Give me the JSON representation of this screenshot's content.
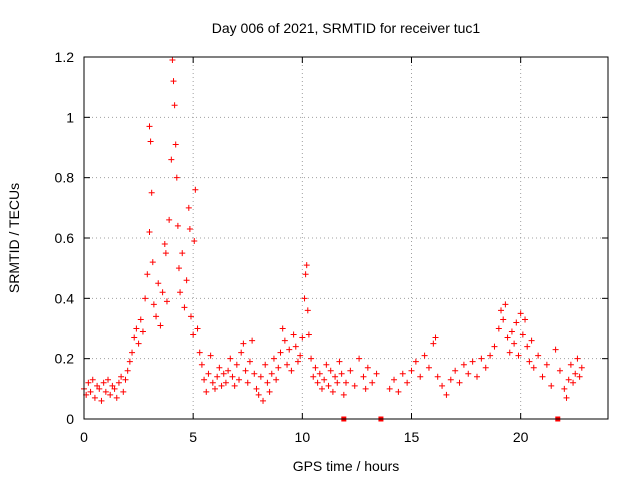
{
  "chart_data": {
    "type": "scatter",
    "title": "Day 006 of 2021, SRMTID for receiver tuc1",
    "xlabel": "GPS time / hours",
    "ylabel": "SRMTID / TECUs",
    "xlim": [
      0,
      24
    ],
    "ylim": [
      0,
      1.2
    ],
    "xticks": [
      0,
      5,
      10,
      15,
      20
    ],
    "xtick_labels": [
      "0",
      "5",
      "10",
      "15",
      "20"
    ],
    "yticks": [
      0,
      0.2,
      0.4,
      0.6,
      0.8,
      1.0,
      1.2
    ],
    "ytick_labels": [
      "0",
      "0.2",
      "0.4",
      "0.6",
      "0.8",
      "1",
      "1.2"
    ],
    "grid": true,
    "marker": "plus",
    "color": "#ff0000",
    "series": [
      {
        "name": "SRMTID",
        "points": [
          [
            0.0,
            0.1
          ],
          [
            0.1,
            0.08
          ],
          [
            0.2,
            0.12
          ],
          [
            0.3,
            0.09
          ],
          [
            0.4,
            0.13
          ],
          [
            0.5,
            0.07
          ],
          [
            0.6,
            0.11
          ],
          [
            0.7,
            0.1
          ],
          [
            0.8,
            0.06
          ],
          [
            0.9,
            0.12
          ],
          [
            1.0,
            0.09
          ],
          [
            1.1,
            0.13
          ],
          [
            1.2,
            0.08
          ],
          [
            1.3,
            0.11
          ],
          [
            1.4,
            0.1
          ],
          [
            1.5,
            0.07
          ],
          [
            1.6,
            0.12
          ],
          [
            1.7,
            0.14
          ],
          [
            1.8,
            0.09
          ],
          [
            1.9,
            0.13
          ],
          [
            2.0,
            0.16
          ],
          [
            2.1,
            0.19
          ],
          [
            2.2,
            0.22
          ],
          [
            2.3,
            0.27
          ],
          [
            2.4,
            0.3
          ],
          [
            2.5,
            0.25
          ],
          [
            2.6,
            0.33
          ],
          [
            2.7,
            0.29
          ],
          [
            2.8,
            0.4
          ],
          [
            2.9,
            0.48
          ],
          [
            3.0,
            0.62
          ],
          [
            3.0,
            0.97
          ],
          [
            3.05,
            0.92
          ],
          [
            3.1,
            0.75
          ],
          [
            3.15,
            0.52
          ],
          [
            3.2,
            0.38
          ],
          [
            3.3,
            0.34
          ],
          [
            3.4,
            0.45
          ],
          [
            3.5,
            0.31
          ],
          [
            3.6,
            0.42
          ],
          [
            3.7,
            0.58
          ],
          [
            3.75,
            0.55
          ],
          [
            3.8,
            0.39
          ],
          [
            3.9,
            0.66
          ],
          [
            4.0,
            0.86
          ],
          [
            4.05,
            1.19
          ],
          [
            4.1,
            1.12
          ],
          [
            4.15,
            1.04
          ],
          [
            4.2,
            0.91
          ],
          [
            4.25,
            0.8
          ],
          [
            4.3,
            0.64
          ],
          [
            4.35,
            0.5
          ],
          [
            4.4,
            0.42
          ],
          [
            4.5,
            0.55
          ],
          [
            4.6,
            0.37
          ],
          [
            4.7,
            0.46
          ],
          [
            4.8,
            0.7
          ],
          [
            4.85,
            0.63
          ],
          [
            4.9,
            0.34
          ],
          [
            5.0,
            0.28
          ],
          [
            5.05,
            0.59
          ],
          [
            5.1,
            0.76
          ],
          [
            5.2,
            0.3
          ],
          [
            5.3,
            0.22
          ],
          [
            5.4,
            0.18
          ],
          [
            5.5,
            0.13
          ],
          [
            5.6,
            0.09
          ],
          [
            5.7,
            0.15
          ],
          [
            5.8,
            0.21
          ],
          [
            5.9,
            0.12
          ],
          [
            6.0,
            0.1
          ],
          [
            6.1,
            0.14
          ],
          [
            6.2,
            0.17
          ],
          [
            6.3,
            0.11
          ],
          [
            6.4,
            0.15
          ],
          [
            6.5,
            0.12
          ],
          [
            6.6,
            0.16
          ],
          [
            6.7,
            0.2
          ],
          [
            6.8,
            0.14
          ],
          [
            6.9,
            0.11
          ],
          [
            7.0,
            0.18
          ],
          [
            7.1,
            0.13
          ],
          [
            7.2,
            0.22
          ],
          [
            7.3,
            0.25
          ],
          [
            7.4,
            0.16
          ],
          [
            7.5,
            0.12
          ],
          [
            7.6,
            0.19
          ],
          [
            7.7,
            0.26
          ],
          [
            7.8,
            0.15
          ],
          [
            7.9,
            0.1
          ],
          [
            8.0,
            0.08
          ],
          [
            8.1,
            0.14
          ],
          [
            8.2,
            0.06
          ],
          [
            8.3,
            0.18
          ],
          [
            8.4,
            0.12
          ],
          [
            8.5,
            0.09
          ],
          [
            8.6,
            0.15
          ],
          [
            8.7,
            0.2
          ],
          [
            8.8,
            0.13
          ],
          [
            8.9,
            0.17
          ],
          [
            9.0,
            0.22
          ],
          [
            9.1,
            0.3
          ],
          [
            9.2,
            0.26
          ],
          [
            9.3,
            0.18
          ],
          [
            9.4,
            0.23
          ],
          [
            9.5,
            0.16
          ],
          [
            9.6,
            0.28
          ],
          [
            9.7,
            0.24
          ],
          [
            9.8,
            0.19
          ],
          [
            9.9,
            0.21
          ],
          [
            10.0,
            0.27
          ],
          [
            10.1,
            0.4
          ],
          [
            10.15,
            0.48
          ],
          [
            10.2,
            0.51
          ],
          [
            10.25,
            0.36
          ],
          [
            10.3,
            0.28
          ],
          [
            10.4,
            0.2
          ],
          [
            10.5,
            0.14
          ],
          [
            10.6,
            0.17
          ],
          [
            10.7,
            0.12
          ],
          [
            10.8,
            0.15
          ],
          [
            10.9,
            0.1
          ],
          [
            11.0,
            0.13
          ],
          [
            11.1,
            0.18
          ],
          [
            11.2,
            0.11
          ],
          [
            11.3,
            0.16
          ],
          [
            11.4,
            0.09
          ],
          [
            11.5,
            0.14
          ],
          [
            11.6,
            0.12
          ],
          [
            11.7,
            0.19
          ],
          [
            11.8,
            0.15
          ],
          [
            11.9,
            0.08
          ],
          [
            12.0,
            0.12
          ],
          [
            12.2,
            0.16
          ],
          [
            12.4,
            0.11
          ],
          [
            12.6,
            0.2
          ],
          [
            12.8,
            0.14
          ],
          [
            12.9,
            0.1
          ],
          [
            13.0,
            0.17
          ],
          [
            13.2,
            0.12
          ],
          [
            13.4,
            0.15
          ],
          [
            14.0,
            0.1
          ],
          [
            14.2,
            0.13
          ],
          [
            14.4,
            0.09
          ],
          [
            14.6,
            0.15
          ],
          [
            14.8,
            0.12
          ],
          [
            15.0,
            0.16
          ],
          [
            15.2,
            0.19
          ],
          [
            15.4,
            0.14
          ],
          [
            15.6,
            0.21
          ],
          [
            15.8,
            0.17
          ],
          [
            16.0,
            0.25
          ],
          [
            16.1,
            0.27
          ],
          [
            16.2,
            0.14
          ],
          [
            16.4,
            0.11
          ],
          [
            16.6,
            0.08
          ],
          [
            16.8,
            0.13
          ],
          [
            17.0,
            0.16
          ],
          [
            17.2,
            0.12
          ],
          [
            17.4,
            0.18
          ],
          [
            17.6,
            0.15
          ],
          [
            17.8,
            0.19
          ],
          [
            18.0,
            0.14
          ],
          [
            18.2,
            0.2
          ],
          [
            18.4,
            0.17
          ],
          [
            18.6,
            0.21
          ],
          [
            18.8,
            0.24
          ],
          [
            19.0,
            0.3
          ],
          [
            19.1,
            0.36
          ],
          [
            19.2,
            0.33
          ],
          [
            19.3,
            0.38
          ],
          [
            19.4,
            0.27
          ],
          [
            19.5,
            0.22
          ],
          [
            19.6,
            0.29
          ],
          [
            19.7,
            0.25
          ],
          [
            19.8,
            0.32
          ],
          [
            19.9,
            0.21
          ],
          [
            20.0,
            0.35
          ],
          [
            20.1,
            0.28
          ],
          [
            20.2,
            0.33
          ],
          [
            20.3,
            0.24
          ],
          [
            20.4,
            0.19
          ],
          [
            20.5,
            0.26
          ],
          [
            20.6,
            0.17
          ],
          [
            20.8,
            0.21
          ],
          [
            21.0,
            0.14
          ],
          [
            21.2,
            0.18
          ],
          [
            21.4,
            0.11
          ],
          [
            21.6,
            0.23
          ],
          [
            21.8,
            0.16
          ],
          [
            22.0,
            0.1
          ],
          [
            22.1,
            0.07
          ],
          [
            22.2,
            0.13
          ],
          [
            22.3,
            0.18
          ],
          [
            22.4,
            0.12
          ],
          [
            22.5,
            0.15
          ],
          [
            22.6,
            0.2
          ],
          [
            22.7,
            0.14
          ],
          [
            22.8,
            0.17
          ]
        ]
      }
    ],
    "gap_markers_x": [
      11.9,
      13.6,
      21.7
    ]
  }
}
